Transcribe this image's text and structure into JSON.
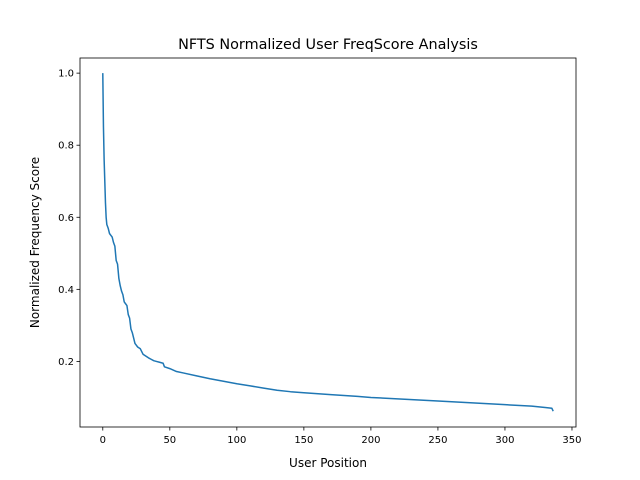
{
  "chart_data": {
    "type": "line",
    "title": "NFTS Normalized User FreqScore Analysis",
    "xlabel": "User Position",
    "ylabel": "Normalized Frequency Score",
    "xlim": [
      -17,
      353
    ],
    "ylim": [
      0.018,
      1.042
    ],
    "xticks": [
      0,
      50,
      100,
      150,
      200,
      250,
      300,
      350
    ],
    "yticks": [
      0.2,
      0.4,
      0.6,
      0.8,
      1.0
    ],
    "grid": false,
    "series": [
      {
        "color": "#1f77b4",
        "x": [
          0,
          0.5,
          1,
          1.5,
          2,
          2.5,
          3,
          4,
          5,
          6,
          7,
          8,
          9,
          10,
          11,
          12,
          13,
          14,
          15,
          16,
          17,
          18,
          19,
          20,
          21,
          22,
          23,
          24,
          25,
          26,
          28,
          30,
          32,
          34,
          36,
          38,
          40,
          42,
          45,
          46,
          50,
          55,
          60,
          70,
          80,
          90,
          100,
          110,
          120,
          130,
          140,
          150,
          170,
          190,
          200,
          250,
          300,
          320,
          330,
          335,
          336
        ],
        "y": [
          1.0,
          0.85,
          0.76,
          0.7,
          0.64,
          0.6,
          0.58,
          0.57,
          0.555,
          0.55,
          0.545,
          0.53,
          0.52,
          0.48,
          0.47,
          0.43,
          0.41,
          0.395,
          0.385,
          0.365,
          0.36,
          0.355,
          0.33,
          0.32,
          0.29,
          0.28,
          0.265,
          0.25,
          0.245,
          0.24,
          0.235,
          0.22,
          0.215,
          0.21,
          0.206,
          0.202,
          0.2,
          0.198,
          0.195,
          0.185,
          0.18,
          0.172,
          0.168,
          0.16,
          0.152,
          0.145,
          0.138,
          0.132,
          0.126,
          0.12,
          0.116,
          0.113,
          0.108,
          0.103,
          0.1,
          0.09,
          0.08,
          0.076,
          0.072,
          0.07,
          0.062
        ]
      }
    ]
  }
}
